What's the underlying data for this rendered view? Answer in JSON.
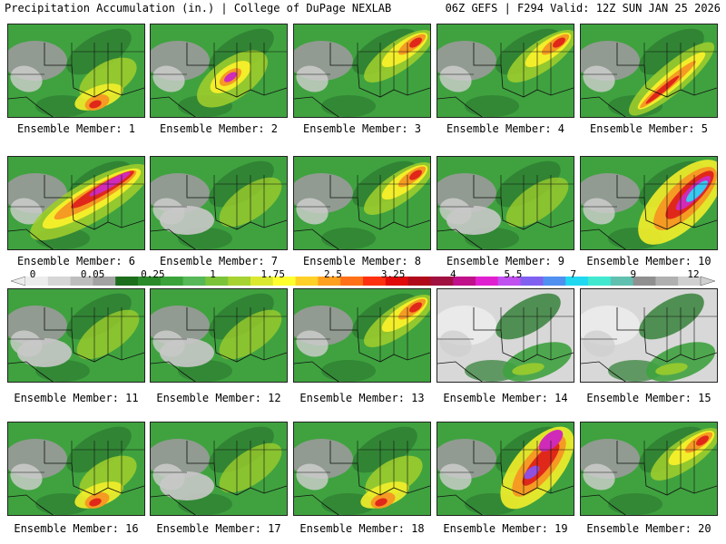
{
  "header": {
    "title": "Precipitation Accumulation (in.) | College of DuPage NEXLAB",
    "run_info": "06Z GEFS | F294 Valid: 12Z SUN JAN 25 2026"
  },
  "panels": [
    {
      "label": "Ensemble Member: 1",
      "theme": "south"
    },
    {
      "label": "Ensemble Member: 2",
      "theme": "central"
    },
    {
      "label": "Ensemble Member: 3",
      "theme": "northeast"
    },
    {
      "label": "Ensemble Member: 4",
      "theme": "northeast"
    },
    {
      "label": "Ensemble Member: 5",
      "theme": "coast"
    },
    {
      "label": "Ensemble Member: 6",
      "theme": "heavy"
    },
    {
      "label": "Ensemble Member: 7",
      "theme": "light"
    },
    {
      "label": "Ensemble Member: 8",
      "theme": "northeast"
    },
    {
      "label": "Ensemble Member: 9",
      "theme": "light"
    },
    {
      "label": "Ensemble Member: 10",
      "theme": "extreme"
    },
    {
      "label": "Ensemble Member: 11",
      "theme": "light"
    },
    {
      "label": "Ensemble Member: 12",
      "theme": "light"
    },
    {
      "label": "Ensemble Member: 13",
      "theme": "northeast"
    },
    {
      "label": "Ensemble Member: 14",
      "theme": "dry"
    },
    {
      "label": "Ensemble Member: 15",
      "theme": "dry"
    },
    {
      "label": "Ensemble Member: 16",
      "theme": "south"
    },
    {
      "label": "Ensemble Member: 17",
      "theme": "light"
    },
    {
      "label": "Ensemble Member: 18",
      "theme": "south"
    },
    {
      "label": "Ensemble Member: 19",
      "theme": "extreme2"
    },
    {
      "label": "Ensemble Member: 20",
      "theme": "northeast"
    }
  ],
  "colorbar": {
    "labels": [
      "0",
      "0.05",
      "0.25",
      "1",
      "1.75",
      "2.5",
      "3.25",
      "4",
      "5.5",
      "7",
      "9",
      "12"
    ],
    "colors": [
      "#ececec",
      "#d6d6d6",
      "#bdbdbd",
      "#a3a3a3",
      "#1c6e1c",
      "#2a8a2a",
      "#3aa33a",
      "#56b856",
      "#7bc43a",
      "#a6d232",
      "#dbe830",
      "#ffff30",
      "#ffd028",
      "#ffa020",
      "#ff7018",
      "#ff3010",
      "#e00a0a",
      "#b00a1a",
      "#a01040",
      "#c0108a",
      "#e020d0",
      "#c050f0",
      "#8060f0",
      "#5090f0",
      "#20d8f0",
      "#40e8d0",
      "#60c0b0",
      "#909090",
      "#b0b0b0",
      "#d0d0d0"
    ]
  },
  "colors": {
    "dry": "#d8d8d8",
    "light": "#bdbdbd",
    "green_dark": "#2e7d32",
    "green": "#3fa23f",
    "yellow_green": "#9ccc2c",
    "yellow": "#f3ee2a",
    "orange": "#f59a22",
    "red": "#e0281a",
    "magenta": "#d02ab8",
    "purple": "#9050e0",
    "cyan": "#38c8f0"
  }
}
